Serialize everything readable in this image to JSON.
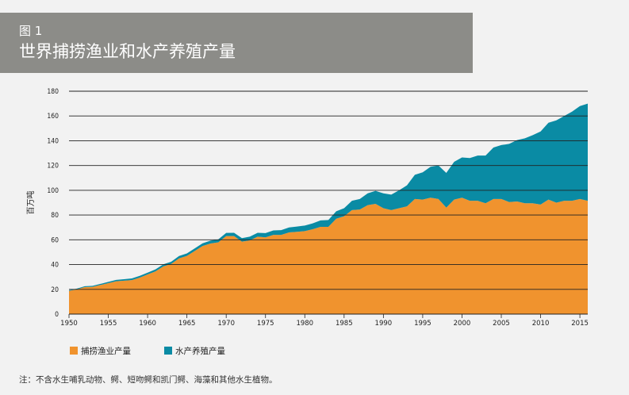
{
  "header": {
    "figure_label": "图 1",
    "title": "世界捕捞渔业和水产养殖产量"
  },
  "note": "注：不含水生哺乳动物、鳄、短吻鳄和凯门鳄、海藻和其他水生植物。",
  "colors": {
    "capture": "#f0932e",
    "aquaculture": "#0a8ba4",
    "header_bg": "#8c8c88",
    "grid": "#222222"
  },
  "chart_data": {
    "type": "area",
    "stacked": true,
    "ylabel": "百万吨",
    "ylim": [
      0,
      180
    ],
    "xlim": [
      1950,
      2016
    ],
    "x_ticks": [
      1950,
      1955,
      1960,
      1965,
      1970,
      1975,
      1980,
      1985,
      1990,
      1995,
      2000,
      2005,
      2010,
      2015
    ],
    "y_ticks": [
      0,
      20,
      40,
      60,
      80,
      100,
      120,
      140,
      160,
      180
    ],
    "grid": "horizontal",
    "legend_position": "bottom-left",
    "x": [
      1950,
      1951,
      1952,
      1953,
      1954,
      1955,
      1956,
      1957,
      1958,
      1959,
      1960,
      1961,
      1962,
      1963,
      1964,
      1965,
      1966,
      1967,
      1968,
      1969,
      1970,
      1971,
      1972,
      1973,
      1974,
      1975,
      1976,
      1977,
      1978,
      1979,
      1980,
      1981,
      1982,
      1983,
      1984,
      1985,
      1986,
      1987,
      1988,
      1989,
      1990,
      1991,
      1992,
      1993,
      1994,
      1995,
      1996,
      1997,
      1998,
      1999,
      2000,
      2001,
      2002,
      2003,
      2004,
      2005,
      2006,
      2007,
      2008,
      2009,
      2010,
      2011,
      2012,
      2013,
      2014,
      2015,
      2016
    ],
    "series": [
      {
        "name": "捕捞渔业产量",
        "values": [
          18.7,
          20.0,
          21.8,
          22.0,
          23.5,
          25.0,
          26.5,
          27.0,
          27.5,
          29.5,
          32.0,
          34.5,
          38.5,
          40.5,
          45.0,
          47.0,
          51.0,
          55.0,
          57.0,
          58.0,
          63.0,
          63.0,
          58.5,
          59.5,
          62.5,
          62.0,
          64.0,
          64.0,
          66.0,
          66.5,
          67.0,
          68.5,
          70.5,
          70.5,
          77.0,
          79.0,
          84.0,
          84.5,
          88.0,
          89.0,
          85.5,
          84.0,
          85.5,
          87.0,
          93.0,
          92.5,
          94.0,
          93.0,
          86.0,
          92.5,
          94.0,
          91.5,
          91.5,
          89.5,
          93.0,
          93.0,
          90.5,
          91.0,
          89.5,
          89.5,
          88.5,
          92.5,
          90.0,
          91.5,
          91.5,
          93.0,
          91.5
        ]
      },
      {
        "name": "水产养殖产量",
        "values": [
          0.6,
          0.6,
          0.7,
          0.8,
          0.9,
          1.0,
          1.1,
          1.2,
          1.3,
          1.4,
          1.5,
          1.6,
          1.7,
          1.8,
          1.9,
          2.0,
          2.1,
          2.2,
          2.3,
          2.4,
          2.6,
          2.7,
          2.8,
          3.0,
          3.2,
          3.4,
          3.6,
          3.8,
          4.0,
          4.2,
          4.5,
          4.8,
          5.2,
          5.5,
          6.0,
          6.5,
          7.5,
          8.5,
          9.5,
          10.5,
          12.0,
          12.5,
          14.5,
          17.0,
          19.5,
          22.0,
          25.0,
          27.0,
          28.0,
          30.5,
          32.5,
          34.5,
          36.5,
          38.5,
          41.5,
          43.5,
          47.0,
          49.5,
          52.5,
          55.0,
          59.0,
          62.0,
          66.5,
          68.5,
          72.0,
          75.0,
          78.5
        ]
      }
    ]
  }
}
